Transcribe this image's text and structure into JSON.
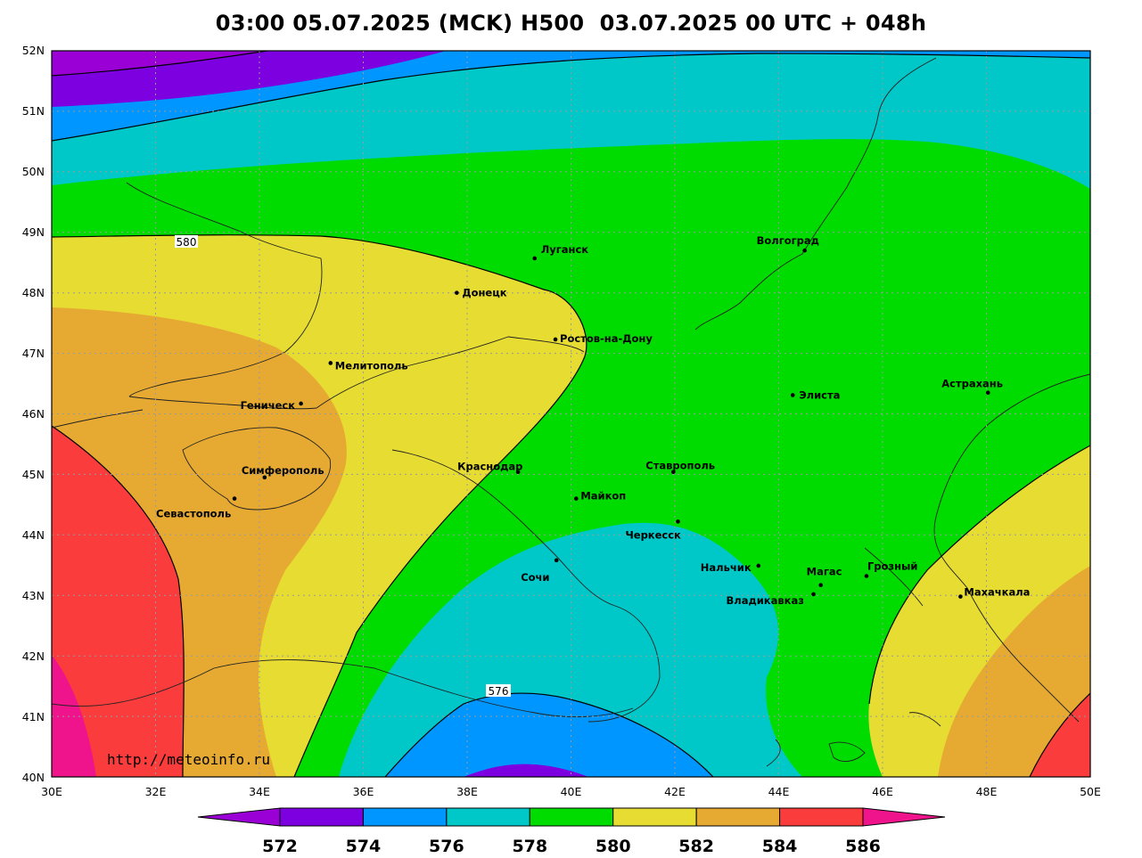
{
  "title": "03:00 05.07.2025 (MCK) H500  03.07.2025 00 UTC + 048h",
  "source": "http://meteoinfo.ru",
  "lon_ticks": [
    "30E",
    "32E",
    "34E",
    "36E",
    "38E",
    "40E",
    "42E",
    "44E",
    "46E",
    "48E",
    "50E"
  ],
  "lat_ticks": [
    "52N",
    "51N",
    "50N",
    "49N",
    "48N",
    "47N",
    "46N",
    "45N",
    "44N",
    "43N",
    "42N",
    "41N",
    "40N"
  ],
  "contour_labels": [
    "580",
    "576"
  ],
  "cities": [
    {
      "name": "Луганск",
      "lon": 39.3,
      "lat": 48.57
    },
    {
      "name": "Донецк",
      "lon": 37.8,
      "lat": 48.0
    },
    {
      "name": "Волгоград",
      "lon": 44.5,
      "lat": 48.7
    },
    {
      "name": "Ростов-на-Дону",
      "lon": 39.7,
      "lat": 47.23
    },
    {
      "name": "Мелитополь",
      "lon": 35.37,
      "lat": 46.84
    },
    {
      "name": "Геническ",
      "lon": 34.8,
      "lat": 46.17
    },
    {
      "name": "Элиста",
      "lon": 44.27,
      "lat": 46.31
    },
    {
      "name": "Астрахань",
      "lon": 48.03,
      "lat": 46.35
    },
    {
      "name": "Симферополь",
      "lon": 34.1,
      "lat": 44.95
    },
    {
      "name": "Краснодар",
      "lon": 38.98,
      "lat": 45.04
    },
    {
      "name": "Ставрополь",
      "lon": 41.97,
      "lat": 45.04
    },
    {
      "name": "Майкоп",
      "lon": 40.1,
      "lat": 44.6
    },
    {
      "name": "Севастополь",
      "lon": 33.52,
      "lat": 44.6
    },
    {
      "name": "Черкесск",
      "lon": 42.06,
      "lat": 44.22
    },
    {
      "name": "Нальчик",
      "lon": 43.61,
      "lat": 43.49
    },
    {
      "name": "Сочи",
      "lon": 39.72,
      "lat": 43.58
    },
    {
      "name": "Магас",
      "lon": 44.81,
      "lat": 43.17
    },
    {
      "name": "Грозный",
      "lon": 45.69,
      "lat": 43.32
    },
    {
      "name": "Владикавказ",
      "lon": 44.67,
      "lat": 43.02
    },
    {
      "name": "Махачкала",
      "lon": 47.5,
      "lat": 42.98
    }
  ],
  "colorbar": {
    "levels": [
      "572",
      "574",
      "576",
      "578",
      "580",
      "582",
      "584",
      "586"
    ],
    "colors": [
      "#9a00d6",
      "#7c00e0",
      "#0096ff",
      "#00c8c8",
      "#00dc00",
      "#e6dc32",
      "#e6aa32",
      "#fa3c3c",
      "#f0148c"
    ]
  },
  "colors": {
    "c572": "#9a00d6",
    "c574": "#7c00e0",
    "c576": "#0096ff",
    "c578": "#00c8c8",
    "c580": "#00dc00",
    "c582": "#e6dc32",
    "c584": "#e6aa32",
    "c586": "#fa3c3c",
    "c588": "#f0148c"
  }
}
